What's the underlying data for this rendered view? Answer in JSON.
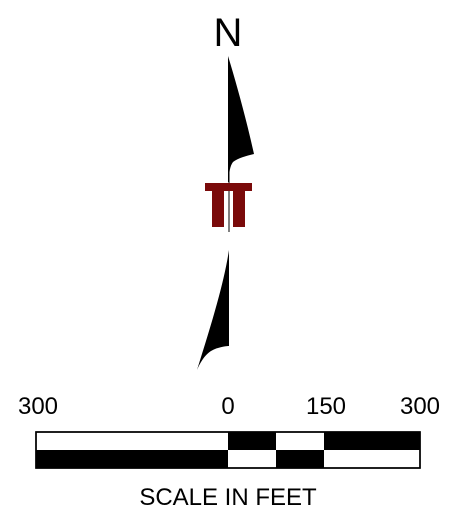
{
  "north_arrow": {
    "label": "N",
    "fill_color": "#000000",
    "logo_color": "#7a0a0a"
  },
  "scale_bar": {
    "tick_labels": [
      "300",
      "0",
      "150",
      "300"
    ],
    "caption": "SCALE IN FEET",
    "fill_color": "#000000"
  }
}
